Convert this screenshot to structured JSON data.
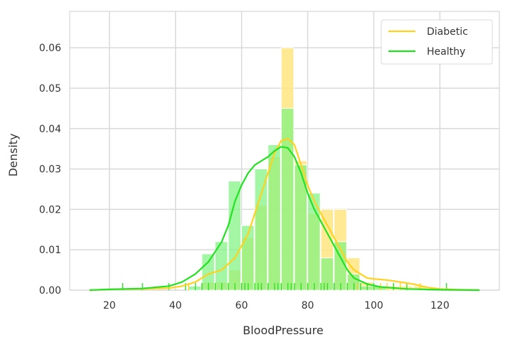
{
  "chart_data": {
    "type": "histogram",
    "xlabel": "BloodPressure",
    "ylabel": "Density",
    "xlim": [
      8,
      138
    ],
    "ylim": [
      0,
      0.069
    ],
    "xticks": [
      20,
      40,
      60,
      80,
      100,
      120
    ],
    "yticks": [
      0.0,
      0.01,
      0.02,
      0.03,
      0.04,
      0.05,
      0.06
    ],
    "xtick_labels": [
      "20",
      "40",
      "60",
      "80",
      "100",
      "120"
    ],
    "ytick_labels": [
      "0.00",
      "0.01",
      "0.02",
      "0.03",
      "0.04",
      "0.05",
      "0.06"
    ],
    "grid": true,
    "legend": "top-right",
    "bin_width": 4,
    "series": [
      {
        "name": "Diabetic",
        "color": "#FFD21F",
        "fill_color": "#FFE57F",
        "bins": [
          {
            "x0": 48,
            "y": 0.002
          },
          {
            "x0": 52,
            "y": 0.002
          },
          {
            "x0": 56,
            "y": 0.005
          },
          {
            "x0": 60,
            "y": 0.013
          },
          {
            "x0": 64,
            "y": 0.021
          },
          {
            "x0": 68,
            "y": 0.033
          },
          {
            "x0": 72,
            "y": 0.06
          },
          {
            "x0": 76,
            "y": 0.032
          },
          {
            "x0": 80,
            "y": 0.019
          },
          {
            "x0": 84,
            "y": 0.02
          },
          {
            "x0": 88,
            "y": 0.02
          },
          {
            "x0": 92,
            "y": 0.008
          },
          {
            "x0": 96,
            "y": 0.002
          },
          {
            "x0": 100,
            "y": 0.001
          },
          {
            "x0": 104,
            "y": 0.001
          },
          {
            "x0": 108,
            "y": 0.001
          },
          {
            "x0": 112,
            "y": 0.001
          }
        ],
        "kde": [
          [
            14,
            0
          ],
          [
            20,
            0.0002
          ],
          [
            30,
            0.0003
          ],
          [
            38,
            0.0005
          ],
          [
            42,
            0.001
          ],
          [
            46,
            0.002
          ],
          [
            50,
            0.004
          ],
          [
            54,
            0.005
          ],
          [
            58,
            0.008
          ],
          [
            62,
            0.014
          ],
          [
            66,
            0.024
          ],
          [
            68,
            0.029
          ],
          [
            70,
            0.034
          ],
          [
            72,
            0.037
          ],
          [
            74,
            0.0375
          ],
          [
            76,
            0.036
          ],
          [
            78,
            0.031
          ],
          [
            80,
            0.026
          ],
          [
            82,
            0.022
          ],
          [
            84,
            0.019
          ],
          [
            86,
            0.016
          ],
          [
            88,
            0.013
          ],
          [
            90,
            0.01
          ],
          [
            92,
            0.007
          ],
          [
            94,
            0.005
          ],
          [
            96,
            0.004
          ],
          [
            98,
            0.003
          ],
          [
            100,
            0.0028
          ],
          [
            104,
            0.0025
          ],
          [
            108,
            0.002
          ],
          [
            112,
            0.0015
          ],
          [
            116,
            0.0007
          ],
          [
            120,
            0.0003
          ],
          [
            126,
            0.0001
          ],
          [
            132,
            0
          ]
        ],
        "rug": [
          44,
          48,
          50,
          52,
          54,
          56,
          58,
          60,
          62,
          64,
          65,
          66,
          68,
          70,
          72,
          74,
          75,
          76,
          78,
          80,
          82,
          84,
          85,
          86,
          88,
          90,
          92,
          94,
          95,
          96,
          98,
          100,
          102,
          104,
          106,
          108,
          110,
          114
        ]
      },
      {
        "name": "Healthy",
        "color": "#22E222",
        "fill_color": "#7FF27F",
        "bins": [
          {
            "x0": 44,
            "y": 0.001
          },
          {
            "x0": 48,
            "y": 0.009
          },
          {
            "x0": 52,
            "y": 0.012
          },
          {
            "x0": 56,
            "y": 0.027
          },
          {
            "x0": 60,
            "y": 0.016
          },
          {
            "x0": 64,
            "y": 0.03
          },
          {
            "x0": 68,
            "y": 0.036
          },
          {
            "x0": 72,
            "y": 0.045
          },
          {
            "x0": 76,
            "y": 0.031
          },
          {
            "x0": 80,
            "y": 0.024
          },
          {
            "x0": 84,
            "y": 0.008
          },
          {
            "x0": 88,
            "y": 0.012
          },
          {
            "x0": 92,
            "y": 0.004
          },
          {
            "x0": 96,
            "y": 0.001
          },
          {
            "x0": 100,
            "y": 0.001
          }
        ],
        "kde": [
          [
            14,
            0
          ],
          [
            20,
            0.0002
          ],
          [
            30,
            0.0004
          ],
          [
            38,
            0.001
          ],
          [
            42,
            0.002
          ],
          [
            46,
            0.004
          ],
          [
            50,
            0.007
          ],
          [
            54,
            0.012
          ],
          [
            56,
            0.016
          ],
          [
            58,
            0.022
          ],
          [
            60,
            0.026
          ],
          [
            62,
            0.029
          ],
          [
            64,
            0.031
          ],
          [
            66,
            0.032
          ],
          [
            68,
            0.033
          ],
          [
            70,
            0.0345
          ],
          [
            72,
            0.0355
          ],
          [
            74,
            0.0352
          ],
          [
            76,
            0.033
          ],
          [
            78,
            0.029
          ],
          [
            80,
            0.024
          ],
          [
            82,
            0.02
          ],
          [
            84,
            0.017
          ],
          [
            86,
            0.014
          ],
          [
            88,
            0.011
          ],
          [
            90,
            0.008
          ],
          [
            92,
            0.005
          ],
          [
            94,
            0.003
          ],
          [
            98,
            0.0015
          ],
          [
            102,
            0.0008
          ],
          [
            110,
            0.0003
          ],
          [
            120,
            0.0001
          ],
          [
            132,
            0
          ]
        ],
        "rug": [
          24,
          30,
          38,
          43,
          46,
          48,
          50,
          52,
          54,
          56,
          58,
          60,
          61,
          62,
          64,
          65,
          66,
          68,
          70,
          71,
          72,
          74,
          75,
          76,
          78,
          80,
          82,
          84,
          85,
          86,
          88,
          90,
          92,
          94,
          96,
          98,
          100,
          106,
          110,
          122
        ]
      }
    ]
  }
}
